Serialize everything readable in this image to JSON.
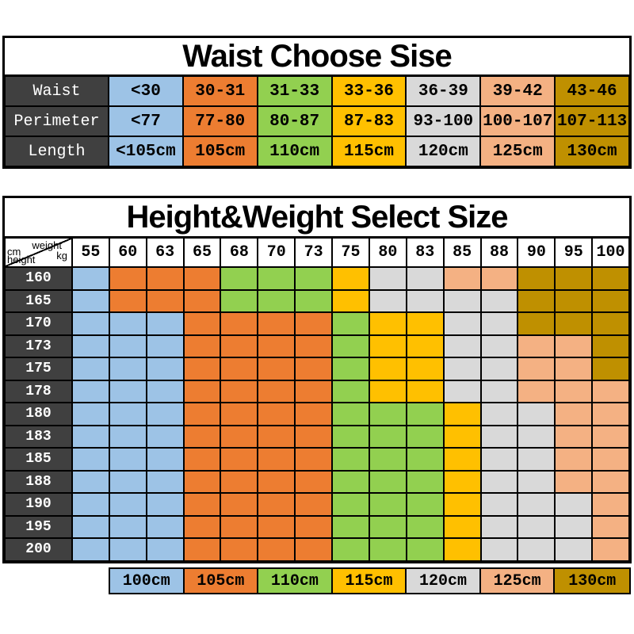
{
  "palette": {
    "100": "#9DC3E6",
    "105": "#ED7D31",
    "110": "#92D050",
    "115": "#FFC000",
    "120": "#D9D9D9",
    "125": "#F4B183",
    "130": "#BF9000",
    "header_dark": "#404040"
  },
  "chart_data": [
    {
      "type": "table",
      "title": "Waist Choose Sise",
      "row_labels": [
        "Waist",
        "Perimeter",
        "Length"
      ],
      "column_sizes": [
        "100",
        "105",
        "110",
        "115",
        "120",
        "125",
        "130"
      ],
      "rows": [
        [
          "<30",
          "30-31",
          "31-33",
          "33-36",
          "36-39",
          "39-42",
          "43-46"
        ],
        [
          "<77",
          "77-80",
          "80-87",
          "87-83",
          "93-100",
          "100-107",
          "107-113"
        ],
        [
          "<105cm",
          "105cm",
          "110cm",
          "115cm",
          "120cm",
          "125cm",
          "130cm"
        ]
      ]
    },
    {
      "type": "heatmap",
      "title": "Height&Weight Select Size",
      "corner": {
        "top_left": "cm",
        "top_right": "weight",
        "bottom_left": "height",
        "bottom_right": "kg"
      },
      "weights": [
        "55",
        "60",
        "63",
        "65",
        "68",
        "70",
        "73",
        "75",
        "80",
        "83",
        "85",
        "88",
        "90",
        "95",
        "100"
      ],
      "heights": [
        "160",
        "165",
        "170",
        "173",
        "175",
        "178",
        "180",
        "183",
        "185",
        "188",
        "190",
        "195",
        "200"
      ],
      "cells": [
        [
          "100",
          "105",
          "105",
          "105",
          "110",
          "110",
          "110",
          "115",
          "120",
          "120",
          "125",
          "125",
          "130",
          "130",
          "130"
        ],
        [
          "100",
          "105",
          "105",
          "105",
          "110",
          "110",
          "110",
          "115",
          "120",
          "120",
          "120",
          "120",
          "130",
          "130",
          "130"
        ],
        [
          "100",
          "100",
          "100",
          "105",
          "105",
          "105",
          "105",
          "110",
          "115",
          "115",
          "120",
          "120",
          "130",
          "130",
          "130"
        ],
        [
          "100",
          "100",
          "100",
          "105",
          "105",
          "105",
          "105",
          "110",
          "115",
          "115",
          "120",
          "120",
          "125",
          "125",
          "130"
        ],
        [
          "100",
          "100",
          "100",
          "105",
          "105",
          "105",
          "105",
          "110",
          "115",
          "115",
          "120",
          "120",
          "125",
          "125",
          "130"
        ],
        [
          "100",
          "100",
          "100",
          "105",
          "105",
          "105",
          "105",
          "110",
          "115",
          "115",
          "120",
          "120",
          "125",
          "125",
          "125"
        ],
        [
          "100",
          "100",
          "100",
          "105",
          "105",
          "105",
          "105",
          "110",
          "110",
          "110",
          "115",
          "120",
          "120",
          "125",
          "125"
        ],
        [
          "100",
          "100",
          "100",
          "105",
          "105",
          "105",
          "105",
          "110",
          "110",
          "110",
          "115",
          "120",
          "120",
          "125",
          "125"
        ],
        [
          "100",
          "100",
          "100",
          "105",
          "105",
          "105",
          "105",
          "110",
          "110",
          "110",
          "115",
          "120",
          "120",
          "125",
          "125"
        ],
        [
          "100",
          "100",
          "100",
          "105",
          "105",
          "105",
          "105",
          "110",
          "110",
          "110",
          "115",
          "120",
          "120",
          "125",
          "125"
        ],
        [
          "100",
          "100",
          "100",
          "105",
          "105",
          "105",
          "105",
          "110",
          "110",
          "110",
          "115",
          "120",
          "120",
          "120",
          "125"
        ],
        [
          "100",
          "100",
          "100",
          "105",
          "105",
          "105",
          "105",
          "110",
          "110",
          "110",
          "115",
          "120",
          "120",
          "120",
          "125"
        ],
        [
          "100",
          "100",
          "100",
          "105",
          "105",
          "105",
          "105",
          "110",
          "110",
          "110",
          "115",
          "120",
          "120",
          "120",
          "125"
        ]
      ],
      "legend": [
        {
          "label": "100cm",
          "size": "100"
        },
        {
          "label": "105cm",
          "size": "105"
        },
        {
          "label": "110cm",
          "size": "110"
        },
        {
          "label": "115cm",
          "size": "115"
        },
        {
          "label": "120cm",
          "size": "120"
        },
        {
          "label": "125cm",
          "size": "125"
        },
        {
          "label": "130cm",
          "size": "130"
        }
      ]
    }
  ]
}
